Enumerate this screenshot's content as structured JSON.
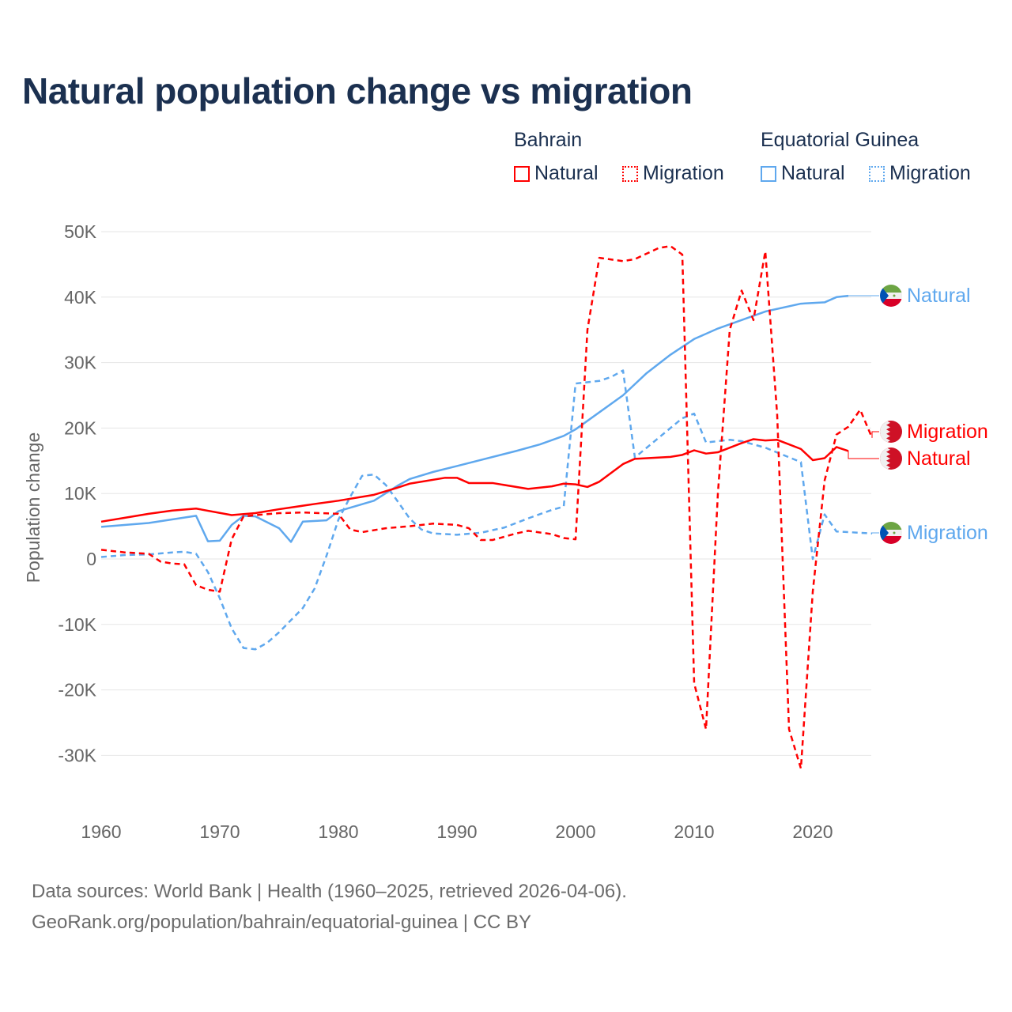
{
  "chart_data": {
    "type": "line",
    "title": "Natural population change vs migration",
    "ylabel": "Population change",
    "xlabel": "",
    "xlim": [
      1960,
      2025
    ],
    "ylim": [
      -35000,
      50000
    ],
    "xticks": [
      1960,
      1970,
      1980,
      1990,
      2000,
      2010,
      2020
    ],
    "xtick_labels": [
      "1960",
      "1970",
      "1980",
      "1990",
      "2000",
      "2010",
      "2020"
    ],
    "yticks": [
      50000,
      40000,
      30000,
      20000,
      10000,
      0,
      -10000,
      -20000,
      -30000
    ],
    "ytick_labels": [
      "50K",
      "40K",
      "30K",
      "20K",
      "10K",
      "0",
      "-10K",
      "-20K",
      "-30K"
    ],
    "grid": true,
    "legend": {
      "position": "top-right",
      "groups": [
        {
          "name": "Bahrain",
          "items": [
            "Natural",
            "Migration"
          ]
        },
        {
          "name": "Equatorial Guinea",
          "items": [
            "Natural",
            "Migration"
          ]
        }
      ]
    },
    "series": [
      {
        "name": "Bahrain Natural",
        "country": "Bahrain",
        "label": "Natural",
        "color": "#ff0000",
        "dash": false,
        "x": [
          1960,
          1962,
          1964,
          1966,
          1968,
          1971,
          1973,
          1975,
          1978,
          1980,
          1983,
          1985,
          1986,
          1989,
          1990,
          1991,
          1993,
          1996,
          1998,
          1999,
          2000,
          2001,
          2002,
          2004,
          2005,
          2008,
          2009,
          2010,
          2011,
          2012,
          2014,
          2015,
          2016,
          2017,
          2018,
          2019,
          2020,
          2021,
          2022,
          2023
        ],
        "y": [
          5700,
          6300,
          6900,
          7400,
          7700,
          6700,
          7000,
          7600,
          8400,
          8900,
          9800,
          10900,
          11500,
          12400,
          12400,
          11600,
          11600,
          10700,
          11100,
          11500,
          11400,
          11000,
          11800,
          14500,
          15300,
          15600,
          15900,
          16600,
          16100,
          16300,
          17700,
          18300,
          18100,
          18200,
          17500,
          16800,
          15100,
          15400,
          17100,
          16500
        ]
      },
      {
        "name": "Bahrain Migration",
        "country": "Bahrain",
        "label": "Migration",
        "color": "#ff0000",
        "dash": true,
        "x": [
          1960,
          1962,
          1964,
          1965,
          1966,
          1967,
          1968,
          1969,
          1970,
          1971,
          1972,
          1973,
          1975,
          1977,
          1980,
          1981,
          1982,
          1984,
          1986,
          1988,
          1990,
          1991,
          1992,
          1993,
          1995,
          1996,
          1998,
          1999,
          2000,
          2001,
          2002,
          2004,
          2005,
          2007,
          2008,
          2009,
          2010,
          2011,
          2012,
          2013,
          2014,
          2015,
          2016,
          2017,
          2018,
          2019,
          2020,
          2021,
          2022,
          2023,
          2024,
          2025
        ],
        "y": [
          1400,
          1000,
          800,
          -400,
          -700,
          -800,
          -4000,
          -4700,
          -5000,
          3000,
          6500,
          6700,
          7000,
          7100,
          6900,
          4500,
          4100,
          4700,
          5000,
          5400,
          5200,
          4700,
          2900,
          2900,
          3900,
          4300,
          3800,
          3200,
          3000,
          35000,
          46000,
          45500,
          45800,
          47500,
          47800,
          46500,
          -19000,
          -26000,
          10000,
          35000,
          41000,
          36500,
          47000,
          22000,
          -26000,
          -32000,
          -5000,
          12000,
          19000,
          20200,
          22800,
          18500
        ]
      },
      {
        "name": "Equatorial Guinea Natural",
        "country": "Equatorial Guinea",
        "label": "Natural",
        "color": "#5fa8ee",
        "dash": false,
        "x": [
          1960,
          1964,
          1968,
          1969,
          1970,
          1971,
          1972,
          1973,
          1975,
          1976,
          1977,
          1979,
          1980,
          1983,
          1985,
          1986,
          1988,
          1990,
          1995,
          1997,
          1999,
          2000,
          2004,
          2006,
          2008,
          2010,
          2012,
          2014,
          2016,
          2019,
          2021,
          2022,
          2023
        ],
        "y": [
          4900,
          5500,
          6600,
          2700,
          2800,
          5200,
          6600,
          6500,
          4700,
          2600,
          5700,
          5900,
          7300,
          8900,
          11200,
          12200,
          13300,
          14200,
          16500,
          17500,
          18800,
          19800,
          25000,
          28400,
          31200,
          33600,
          35200,
          36500,
          37800,
          39000,
          39200,
          40000,
          40200
        ]
      },
      {
        "name": "Equatorial Guinea Migration",
        "country": "Equatorial Guinea",
        "label": "Migration",
        "color": "#5fa8ee",
        "dash": true,
        "x": [
          1960,
          1962,
          1964,
          1966,
          1967,
          1968,
          1969,
          1970,
          1971,
          1972,
          1973,
          1974,
          1975,
          1977,
          1978,
          1979,
          1980,
          1981,
          1982,
          1983,
          1984,
          1985,
          1986,
          1987,
          1988,
          1990,
          1992,
          1994,
          1996,
          1998,
          1999,
          2000,
          2002,
          2003,
          2004,
          2005,
          2006,
          2008,
          2009,
          2010,
          2011,
          2013,
          2014,
          2016,
          2019,
          2020,
          2021,
          2022,
          2025
        ],
        "y": [
          300,
          600,
          700,
          1000,
          1100,
          800,
          -2000,
          -6000,
          -10600,
          -13600,
          -13800,
          -12800,
          -11200,
          -7500,
          -4500,
          500,
          6000,
          9500,
          12700,
          12900,
          11300,
          8800,
          6200,
          4500,
          3900,
          3700,
          4000,
          4800,
          6200,
          7500,
          8000,
          26800,
          27200,
          27800,
          28800,
          15500,
          17000,
          20000,
          21500,
          22200,
          17800,
          18200,
          18000,
          17000,
          14800,
          0,
          6800,
          4200,
          3900
        ]
      }
    ]
  },
  "footer": {
    "line1": "Data sources: World Bank | Health (1960–2025, retrieved 2026-04-06).",
    "line2": "GeoRank.org/population/bahrain/equatorial-guinea | CC BY"
  }
}
